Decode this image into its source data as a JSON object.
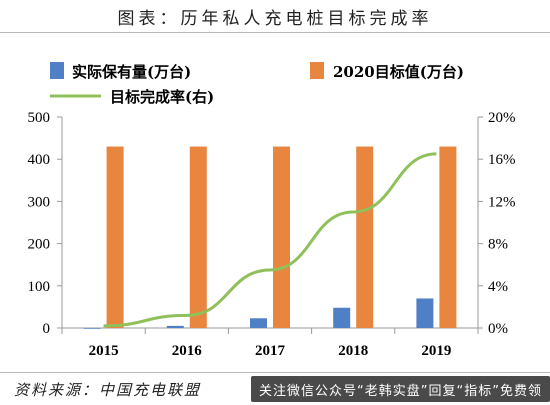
{
  "header": {
    "title": "图表：历年私人充电桩目标完成率"
  },
  "footer": {
    "source": "资料来源：中国充电联盟",
    "watermark": "关注微信公众号“老韩实盘”回复“指标”免费领"
  },
  "chart_data": {
    "type": "bar",
    "categories": [
      "2015",
      "2016",
      "2017",
      "2018",
      "2019"
    ],
    "series": [
      {
        "name": "实际保有量(万台)",
        "type": "bar",
        "axis": "left",
        "color": "#4f7fc4",
        "values": [
          0.1,
          5,
          23,
          48,
          70
        ]
      },
      {
        "name": "2020目标值(万台)",
        "type": "bar",
        "axis": "left",
        "color": "#e8853f",
        "values": [
          430,
          430,
          430,
          430,
          430
        ]
      },
      {
        "name": "目标完成率(右)",
        "type": "line",
        "axis": "right",
        "color": "#8fc05a",
        "values": [
          0.2,
          1.2,
          5.5,
          11.0,
          16.5
        ]
      }
    ],
    "y_left": {
      "min": 0,
      "max": 500,
      "ticks": [
        "0",
        "100",
        "200",
        "300",
        "400",
        "500"
      ]
    },
    "y_right": {
      "min": 0,
      "max": 20,
      "ticks": [
        "0%",
        "4%",
        "8%",
        "12%",
        "16%",
        "20%"
      ]
    },
    "legend_placement": "top"
  }
}
